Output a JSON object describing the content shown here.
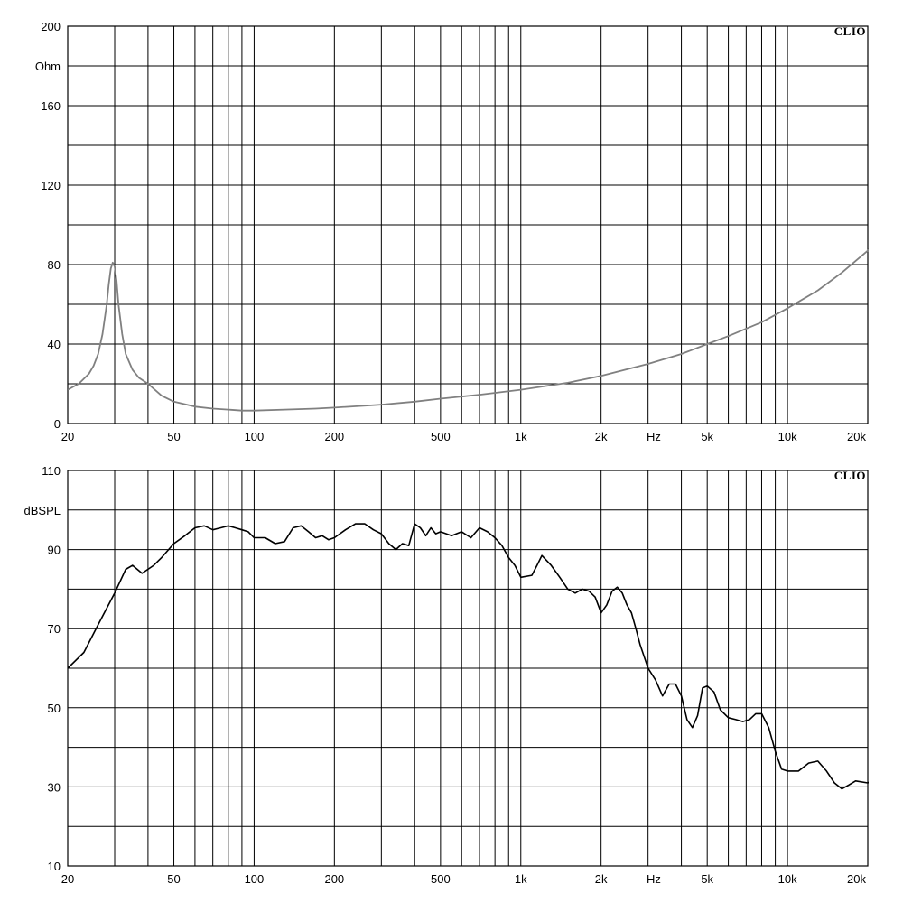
{
  "chart_data": [
    {
      "type": "line",
      "brand": "CLIO",
      "ylabel": "Ohm",
      "xlabel": "Hz",
      "x_scale": "log",
      "xlim": [
        20,
        20000
      ],
      "ylim": [
        0,
        200
      ],
      "grid": true,
      "x_tick_labels": [
        {
          "value": 20,
          "label": "20"
        },
        {
          "value": 50,
          "label": "50"
        },
        {
          "value": 100,
          "label": "100"
        },
        {
          "value": 200,
          "label": "200"
        },
        {
          "value": 500,
          "label": "500"
        },
        {
          "value": 1000,
          "label": "1k"
        },
        {
          "value": 2000,
          "label": "2k"
        },
        {
          "value": 5000,
          "label": "5k"
        },
        {
          "value": 10000,
          "label": "10k"
        },
        {
          "value": 20000,
          "label": "20k"
        }
      ],
      "y_tick_labels": [
        {
          "value": 200,
          "label": "200"
        },
        {
          "value": 160,
          "label": "160"
        },
        {
          "value": 120,
          "label": "120"
        },
        {
          "value": 80,
          "label": "80"
        },
        {
          "value": 40,
          "label": "40"
        },
        {
          "value": 0,
          "label": "0"
        }
      ],
      "line_color": "#808080",
      "series": [
        {
          "x": [
            20,
            22,
            24,
            25,
            26,
            27,
            28,
            28.5,
            29,
            29.5,
            30,
            30.5,
            31,
            32,
            33,
            35,
            37,
            40,
            45,
            50,
            60,
            70,
            80,
            90,
            100,
            130,
            170,
            200,
            300,
            400,
            500,
            700,
            1000,
            1500,
            2000,
            3000,
            4000,
            5000,
            6000,
            8000,
            10000,
            13000,
            16000,
            20000,
            21500
          ],
          "y": [
            17,
            20,
            25,
            29,
            35,
            45,
            60,
            70,
            78,
            81,
            79,
            72,
            60,
            45,
            35,
            27,
            23,
            20,
            14,
            11,
            8.5,
            7.5,
            7,
            6.5,
            6.5,
            7,
            7.5,
            8,
            9.5,
            11,
            12.5,
            14.5,
            17,
            20.5,
            24,
            30,
            35,
            40,
            44,
            51,
            58,
            67,
            76,
            87,
            92
          ]
        }
      ]
    },
    {
      "type": "line",
      "brand": "CLIO",
      "ylabel": "dBSPL",
      "xlabel": "Hz",
      "x_scale": "log",
      "xlim": [
        20,
        20000
      ],
      "ylim": [
        10,
        110
      ],
      "grid": true,
      "x_tick_labels": [
        {
          "value": 20,
          "label": "20"
        },
        {
          "value": 50,
          "label": "50"
        },
        {
          "value": 100,
          "label": "100"
        },
        {
          "value": 200,
          "label": "200"
        },
        {
          "value": 500,
          "label": "500"
        },
        {
          "value": 1000,
          "label": "1k"
        },
        {
          "value": 2000,
          "label": "2k"
        },
        {
          "value": 5000,
          "label": "5k"
        },
        {
          "value": 10000,
          "label": "10k"
        },
        {
          "value": 20000,
          "label": "20k"
        }
      ],
      "y_tick_labels": [
        {
          "value": 110,
          "label": "110"
        },
        {
          "value": 90,
          "label": "90"
        },
        {
          "value": 70,
          "label": "70"
        },
        {
          "value": 50,
          "label": "50"
        },
        {
          "value": 30,
          "label": "30"
        },
        {
          "value": 10,
          "label": "10"
        }
      ],
      "line_color": "#000000",
      "series": [
        {
          "x": [
            20,
            23,
            26,
            30,
            33,
            35,
            38,
            42,
            45,
            50,
            55,
            60,
            65,
            70,
            75,
            80,
            85,
            90,
            95,
            100,
            110,
            120,
            130,
            140,
            150,
            160,
            170,
            180,
            190,
            200,
            220,
            240,
            260,
            280,
            300,
            320,
            340,
            360,
            380,
            400,
            420,
            440,
            460,
            480,
            500,
            550,
            600,
            650,
            700,
            750,
            800,
            850,
            900,
            950,
            1000,
            1100,
            1150,
            1200,
            1300,
            1400,
            1500,
            1600,
            1700,
            1800,
            1900,
            2000,
            2100,
            2200,
            2300,
            2400,
            2500,
            2600,
            2700,
            2800,
            3000,
            3200,
            3400,
            3600,
            3800,
            4000,
            4200,
            4400,
            4600,
            4800,
            5000,
            5300,
            5600,
            6000,
            6400,
            6800,
            7200,
            7600,
            8000,
            8500,
            9000,
            9500,
            10000,
            11000,
            12000,
            13000,
            14000,
            15000,
            16000,
            17000,
            18000,
            20000,
            21500
          ],
          "y": [
            60,
            64,
            71,
            79,
            85,
            86,
            84,
            86,
            88,
            91.5,
            93.5,
            95.5,
            96,
            95,
            95.5,
            96,
            95.5,
            95,
            94.5,
            93,
            93,
            91.5,
            92,
            95.5,
            96,
            94.5,
            93,
            93.5,
            92.5,
            93,
            95,
            96.5,
            96.5,
            95,
            94,
            91.5,
            90,
            91.5,
            91,
            96.5,
            95.5,
            93.5,
            95.5,
            94,
            94.5,
            93.5,
            94.5,
            93,
            95.5,
            94.5,
            93,
            91,
            88,
            86,
            83,
            83.5,
            86,
            88.5,
            86,
            83,
            80,
            79,
            80,
            79.5,
            78,
            74,
            76,
            79.5,
            80.5,
            79,
            76,
            74,
            70,
            66,
            60,
            57,
            53,
            56,
            56,
            53,
            47,
            45,
            48,
            55,
            55.5,
            54,
            49.5,
            47.5,
            47,
            46.5,
            47,
            48.5,
            48.5,
            45,
            39,
            34.5,
            34,
            34,
            36,
            36.5,
            34,
            31,
            29.5,
            30.5,
            31.5,
            31,
            32
          ]
        }
      ]
    }
  ]
}
